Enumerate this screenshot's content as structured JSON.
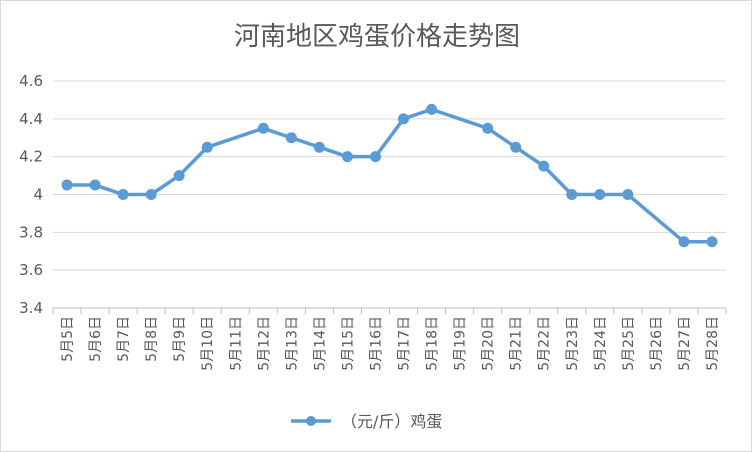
{
  "chart_data": {
    "type": "line",
    "title": "河南地区鸡蛋价格走势图",
    "categories": [
      "5月5日",
      "5月6日",
      "5月7日",
      "5月8日",
      "5月9日",
      "5月10日",
      "5月11日",
      "5月12日",
      "5月13日",
      "5月14日",
      "5月15日",
      "5月16日",
      "5月17日",
      "5月18日",
      "5月19日",
      "5月20日",
      "5月21日",
      "5月22日",
      "5月23日",
      "5月24日",
      "5月25日",
      "5月26日",
      "5月27日",
      "5月28日"
    ],
    "series": [
      {
        "name": "（元/斤）鸡蛋",
        "color": "#5b9bd5",
        "values": [
          4.05,
          4.05,
          4.0,
          4.0,
          4.1,
          4.25,
          null,
          4.35,
          4.3,
          4.25,
          4.2,
          4.2,
          4.4,
          4.45,
          null,
          4.35,
          4.25,
          4.15,
          4.0,
          4.0,
          4.0,
          null,
          3.75,
          3.75
        ]
      }
    ],
    "yticks": [
      "3.4",
      "3.6",
      "3.8",
      "4",
      "4.2",
      "4.4",
      "4.6"
    ],
    "ylim": [
      3.4,
      4.6
    ],
    "grid": true,
    "legend": "bottom"
  }
}
